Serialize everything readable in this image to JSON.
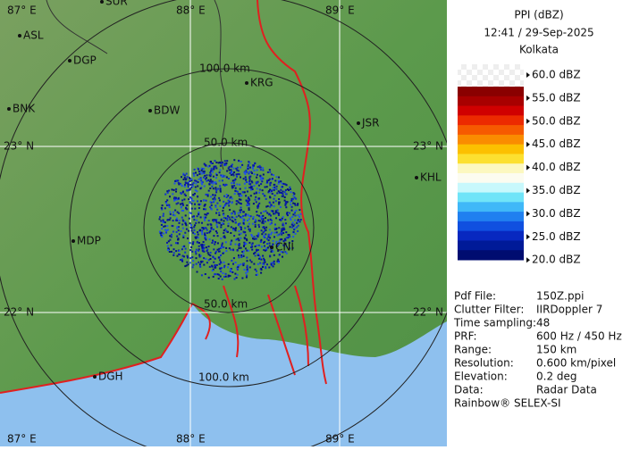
{
  "map": {
    "lon_labels_top": [
      "87° E",
      "88° E",
      "89° E"
    ],
    "lon_labels_bottom": [
      "87° E",
      "88° E",
      "89° E"
    ],
    "lat_labels_left": [
      "23° N",
      "22° N"
    ],
    "lat_labels_right": [
      "23° N",
      "22° N"
    ],
    "range_labels": [
      "100.0 km",
      "50.0 km",
      "50.0 km",
      "100.0 km"
    ],
    "cities": [
      "SUR",
      "ASL",
      "DGP",
      "KRG",
      "BNK",
      "BDW",
      "JSR",
      "KHL",
      "MDP",
      "CNI",
      "DGH"
    ]
  },
  "panel": {
    "title": "PPI (dBZ)",
    "time": "12:41 / 29-Sep-2025",
    "site": "Kolkata",
    "scale_labels": [
      "60.0 dBZ",
      "55.0 dBZ",
      "50.0 dBZ",
      "45.0 dBZ",
      "40.0 dBZ",
      "35.0 dBZ",
      "30.0 dBZ",
      "25.0 dBZ",
      "20.0 dBZ"
    ],
    "scale_colors": [
      "#8a0000",
      "#a80000",
      "#d00000",
      "#ec2a00",
      "#f65a00",
      "#fa8c00",
      "#fcc000",
      "#fce030",
      "#fcf8c0",
      "#fcfcf0",
      "#c8f8fc",
      "#70e4f8",
      "#40b8f8",
      "#2080f0",
      "#1050e0",
      "#0828c0",
      "#001a98",
      "#000c70"
    ],
    "info": [
      [
        "Pdf File:",
        "150Z.ppi"
      ],
      [
        "Clutter Filter:",
        "IIRDoppler 7"
      ],
      [
        "Time sampling:",
        "48"
      ],
      [
        "PRF:",
        "600 Hz / 450 Hz"
      ],
      [
        "Range:",
        "150 km"
      ],
      [
        "Resolution:",
        "0.600 km/pixel"
      ],
      [
        "Elevation:",
        "0.2 deg"
      ],
      [
        "Data:",
        "Radar Data"
      ]
    ],
    "footer": "Rainbow® SELEX-SI"
  }
}
